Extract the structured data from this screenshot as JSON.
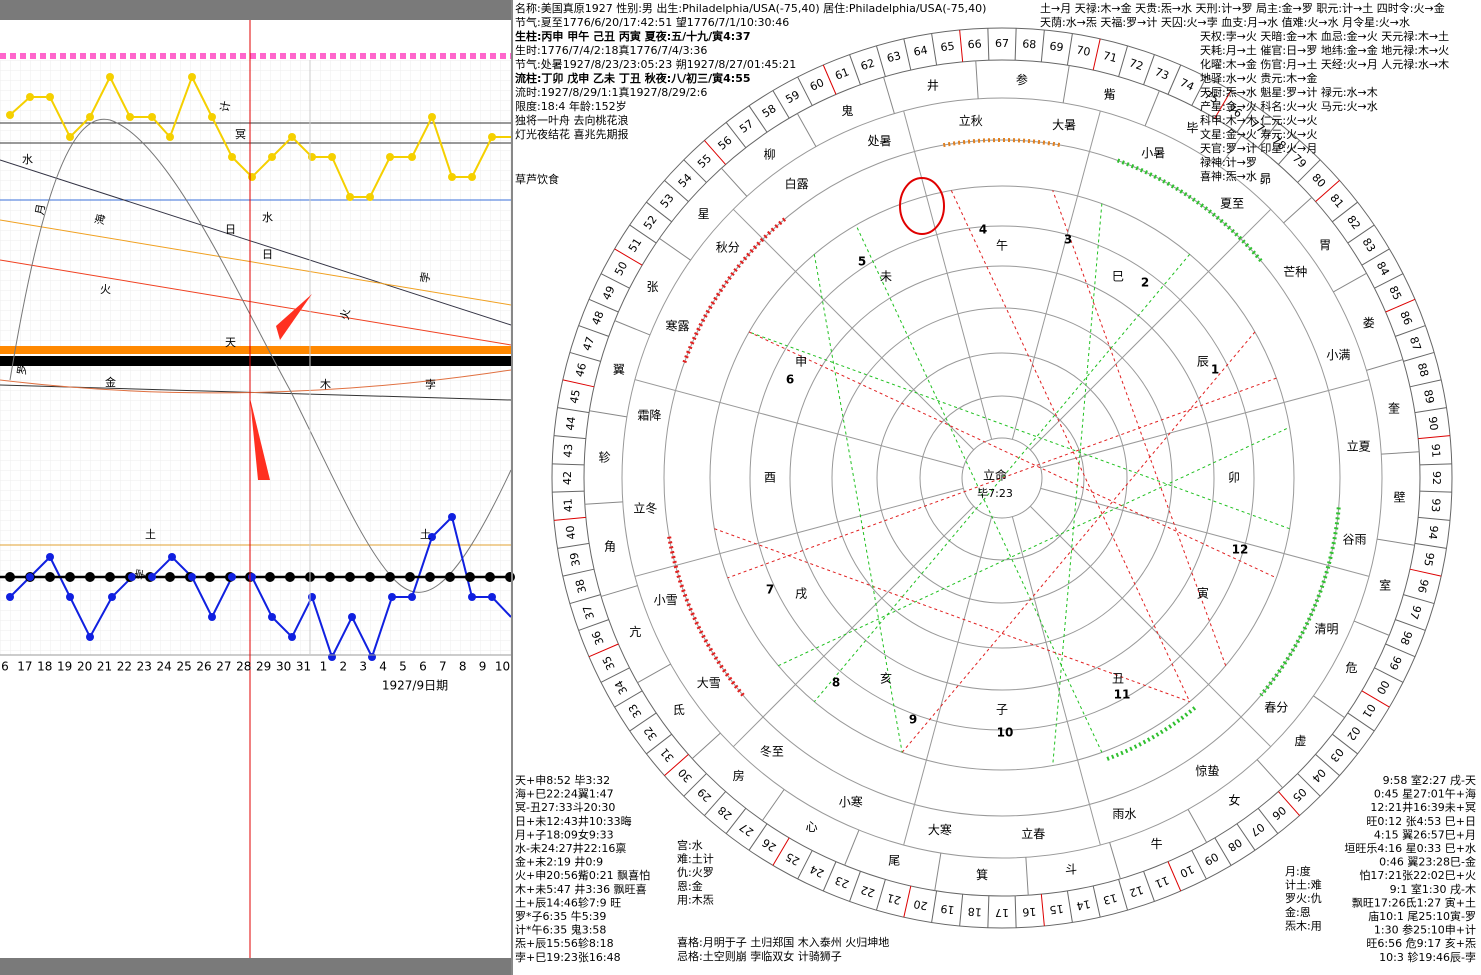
{
  "left_panel": {
    "x_labels": [
      "6",
      "17",
      "18",
      "19",
      "20",
      "21",
      "22",
      "23",
      "24",
      "25",
      "26",
      "27",
      "28",
      "29",
      "30",
      "31",
      "1",
      "2",
      "3",
      "4",
      "5",
      "6",
      "7",
      "8",
      "9",
      "10"
    ],
    "axis_title": "1927/9日期",
    "glyphs": [
      "计",
      "冥",
      "水",
      "月",
      "日",
      "水",
      "海",
      "日",
      "火",
      "火",
      "天",
      "金",
      "孛",
      "孛",
      "土",
      "罗",
      "木",
      "土",
      "孛"
    ]
  },
  "header": {
    "lines": [
      "名称:美国真原1927 性别:男 出生:Philadelphia/USA(-75,40) 居住:Philadelphia/USA(-75,40)",
      "节气:夏至1776/6/20/17:42:51 望1776/7/1/10:30:46",
      "生柱:丙申 甲午 己丑 丙寅 夏夜:五/十九/寅4:37",
      "生时:1776/7/4/2:18真1776/7/4/3:36",
      "节气:处暑1927/8/23/23:05:23 朔1927/8/27/01:45:21",
      "流柱:丁卯 戊申 乙未 丁丑 秋夜:八/初三/寅4:55",
      "流时:1927/8/29/1:1真1927/8/29/2:6",
      "限度:18:4 年龄:152岁"
    ],
    "poem": [
      "独将一叶舟 去向桃花浪",
      "灯光夜结花 喜兆先期报"
    ],
    "note": "草芦饮食"
  },
  "top_right": [
    "土→月 天禄:木→金 天贵:炁→水 天刑:计→罗 局主:金→罗 职元:计→土 四时令:火→金",
    "天荫:水→炁 天福:罗→计 天囚:火→孛 血支:月→水 值难:火→水 月令星:火→水",
    "天权:孛→火 天暗:金→木 血忌:金→火 天元禄:木→土",
    "天耗:月→土 催官:日→罗 地纬:金→金 地元禄:木→火",
    "化曜:木→金 伤官:月→土 天经:火→月 人元禄:水→木",
    "地驿:水→火 贵元:木→金",
    "天厨:炁→水 魁星:罗→计 禄元:水→木",
    "产星:金→火 科名:火→火 马元:火→水",
    "科甲:木→木 仁元:火→火",
    "文星:金→火 寿元:火→火",
    "天官:罗→计 印星:火→月",
    "禄神:计→罗",
    "喜神:炁→水"
  ],
  "wheel": {
    "ring_numbers": [
      "00",
      "01",
      "02",
      "03",
      "04",
      "05",
      "06",
      "07",
      "08",
      "09",
      "10",
      "11",
      "12",
      "13",
      "14",
      "15",
      "16",
      "17",
      "18",
      "19",
      "20",
      "21",
      "22",
      "23",
      "24",
      "25",
      "26",
      "27",
      "28",
      "29",
      "30",
      "31",
      "32",
      "33",
      "34",
      "35",
      "36",
      "37",
      "38",
      "39",
      "40",
      "41",
      "42",
      "43",
      "44",
      "45",
      "46",
      "47",
      "48",
      "49",
      "50",
      "51",
      "52",
      "53",
      "54",
      "55",
      "56",
      "57",
      "58",
      "59",
      "60",
      "61",
      "62",
      "63",
      "64",
      "65",
      "66",
      "67",
      "68",
      "69",
      "70",
      "71",
      "72",
      "73",
      "74",
      "75",
      "76",
      "77",
      "78",
      "79",
      "80",
      "81",
      "82",
      "83",
      "84",
      "85",
      "86",
      "87",
      "88",
      "89",
      "90",
      "91",
      "92",
      "93",
      "94",
      "95",
      "96",
      "97",
      "98",
      "99"
    ],
    "mansions": [
      "角",
      "亢",
      "氐",
      "房",
      "心",
      "尾",
      "箕",
      "斗",
      "牛",
      "女",
      "虚",
      "危",
      "室",
      "壁",
      "奎",
      "娄",
      "胃",
      "昴",
      "毕",
      "觜",
      "参",
      "井",
      "鬼",
      "柳",
      "星",
      "张",
      "翼",
      "轸"
    ],
    "solar_terms": [
      "冬至",
      "小寒",
      "大寒",
      "立春",
      "雨水",
      "惊蛰",
      "春分",
      "清明",
      "谷雨",
      "立夏",
      "小满",
      "芒种",
      "夏至",
      "小暑",
      "大暑",
      "立秋",
      "处暑",
      "白露",
      "秋分",
      "寒露",
      "霜降",
      "立冬",
      "小雪",
      "大雪"
    ],
    "branches": [
      "子",
      "丑",
      "寅",
      "卯",
      "辰",
      "巳",
      "午",
      "未",
      "申",
      "酉",
      "戌",
      "亥"
    ],
    "houses": [
      "1",
      "2",
      "3",
      "4",
      "5",
      "6",
      "7",
      "8",
      "9",
      "10",
      "11",
      "12"
    ],
    "center": "立命",
    "center_sub": "毕7:23"
  },
  "bottom_left": [
    "天+申8:52 毕3:32",
    "海+巳22:24翼1:47",
    "冥-丑27:33斗20:30",
    "日+未12:43井10:33晦",
    "月+子18:09女9:33",
    "水-未24:27井22:16禀",
    "金+未2:19 井0:9",
    "火+申20:56觜0:21 飘喜怕",
    "木+未5:47 井3:36 飘旺喜",
    "土+辰14:46轸7:9 旺",
    "罗*子6:35 牛5:39",
    "计*午6:35 鬼3:58",
    "炁+辰15:56轸8:18",
    "孛+巳19:23张16:48"
  ],
  "bottom_mid": [
    "宫:水",
    "难:土计",
    "仇:火罗",
    "恩:金",
    "用:木炁"
  ],
  "patterns": [
    "喜格:月明于子 土归郑国 木入泰州 火归坤地",
    "忌格:土空则崩 孛临双女 计骑狮子"
  ],
  "bottom_right_mid": [
    "月:度",
    "计土:难",
    "罗火:仇",
    "金:恩",
    "炁木:用"
  ],
  "bottom_right": [
    "9:58 室2:27 戌-天",
    "0:45 星27:01午+海",
    "12:21井16:39未+冥",
    "旺0:12 张4:53 巳+日",
    "4:15 翼26:57巳+月",
    "垣旺乐4:16 星0:33 巳+水",
    "0:46 翼23:28巳-金",
    "怕17:21张22:02巳+火",
    "9:1 室1:30 戌-木",
    "飘旺17:26氐1:27 寅+土",
    "庙10:1 尾25:10寅-罗",
    "1:30 参25:10申+计",
    "旺6:56 危9:17 亥+炁",
    "10:3 轸19:46辰-孛"
  ]
}
